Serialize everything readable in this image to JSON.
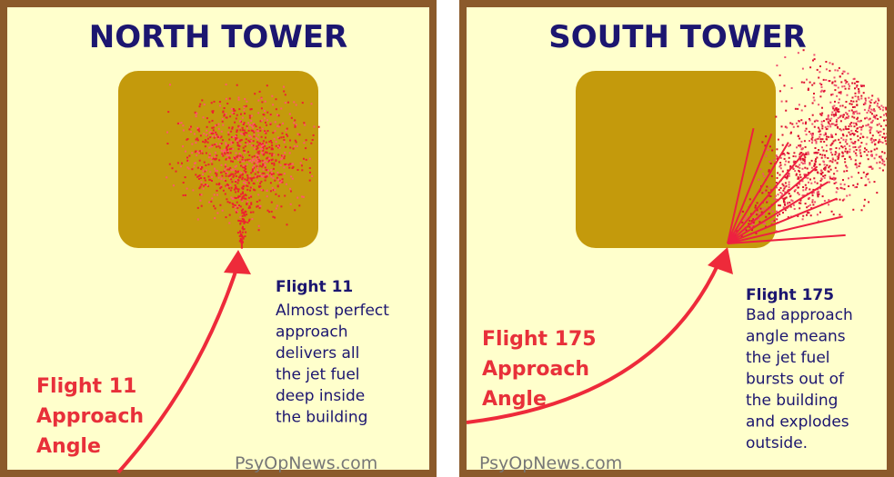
{
  "panels": [
    {
      "title": "NORTH TOWER",
      "approach_label": [
        "Flight 11",
        "Approach",
        "Angle"
      ],
      "description_title": "Flight 11",
      "description": [
        "Almost perfect",
        "approach",
        "delivers all",
        "the jet fuel",
        "deep inside",
        "the building"
      ],
      "watermark": "PsyOpNews.com"
    },
    {
      "title": "SOUTH TOWER",
      "approach_label": [
        "Flight 175",
        "Approach",
        "Angle"
      ],
      "description_title": "Flight 175",
      "description": [
        "Bad approach",
        "angle means",
        "the jet fuel",
        "bursts out of",
        "the building",
        "and explodes",
        "outside."
      ],
      "watermark": "PsyOpNews.com"
    }
  ]
}
